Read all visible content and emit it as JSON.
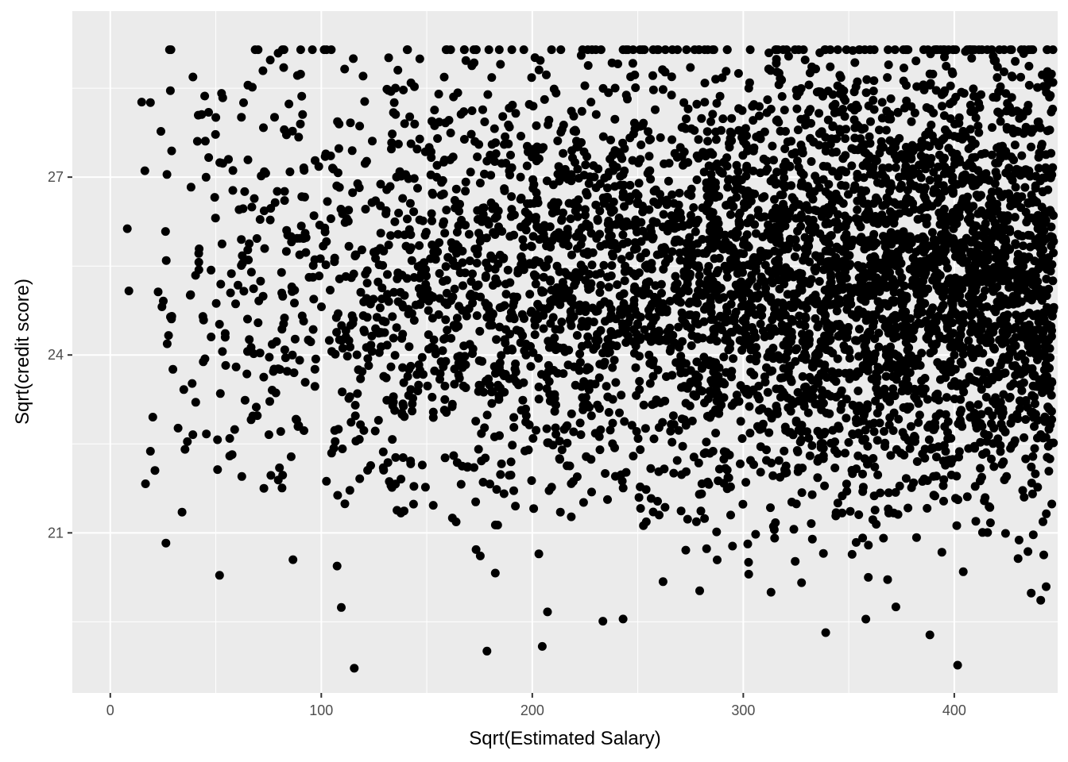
{
  "chart_data": {
    "type": "scatter",
    "title": "",
    "xlabel": "Sqrt(Estimated Salary)",
    "ylabel": "Sqrt(credit score)",
    "xlim": [
      -18,
      449
    ],
    "ylim": [
      18.3,
      29.8
    ],
    "x_ticks": [
      0,
      100,
      200,
      300,
      400
    ],
    "y_ticks": [
      21,
      24,
      27
    ],
    "x_minor": [
      50,
      150,
      250,
      350
    ],
    "y_minor": [
      19.5,
      22.5,
      25.5,
      28.5
    ],
    "grid": true,
    "legend": "none",
    "point_color": "#000000",
    "panel_color": "#ebebeb",
    "gridline_color": "#ffffff",
    "num_points": 5000,
    "density": {
      "x_peak": 380,
      "y_center": 25.3,
      "y_sd": 1.9,
      "x_max": 447.2,
      "y_max": 29.15
    }
  }
}
